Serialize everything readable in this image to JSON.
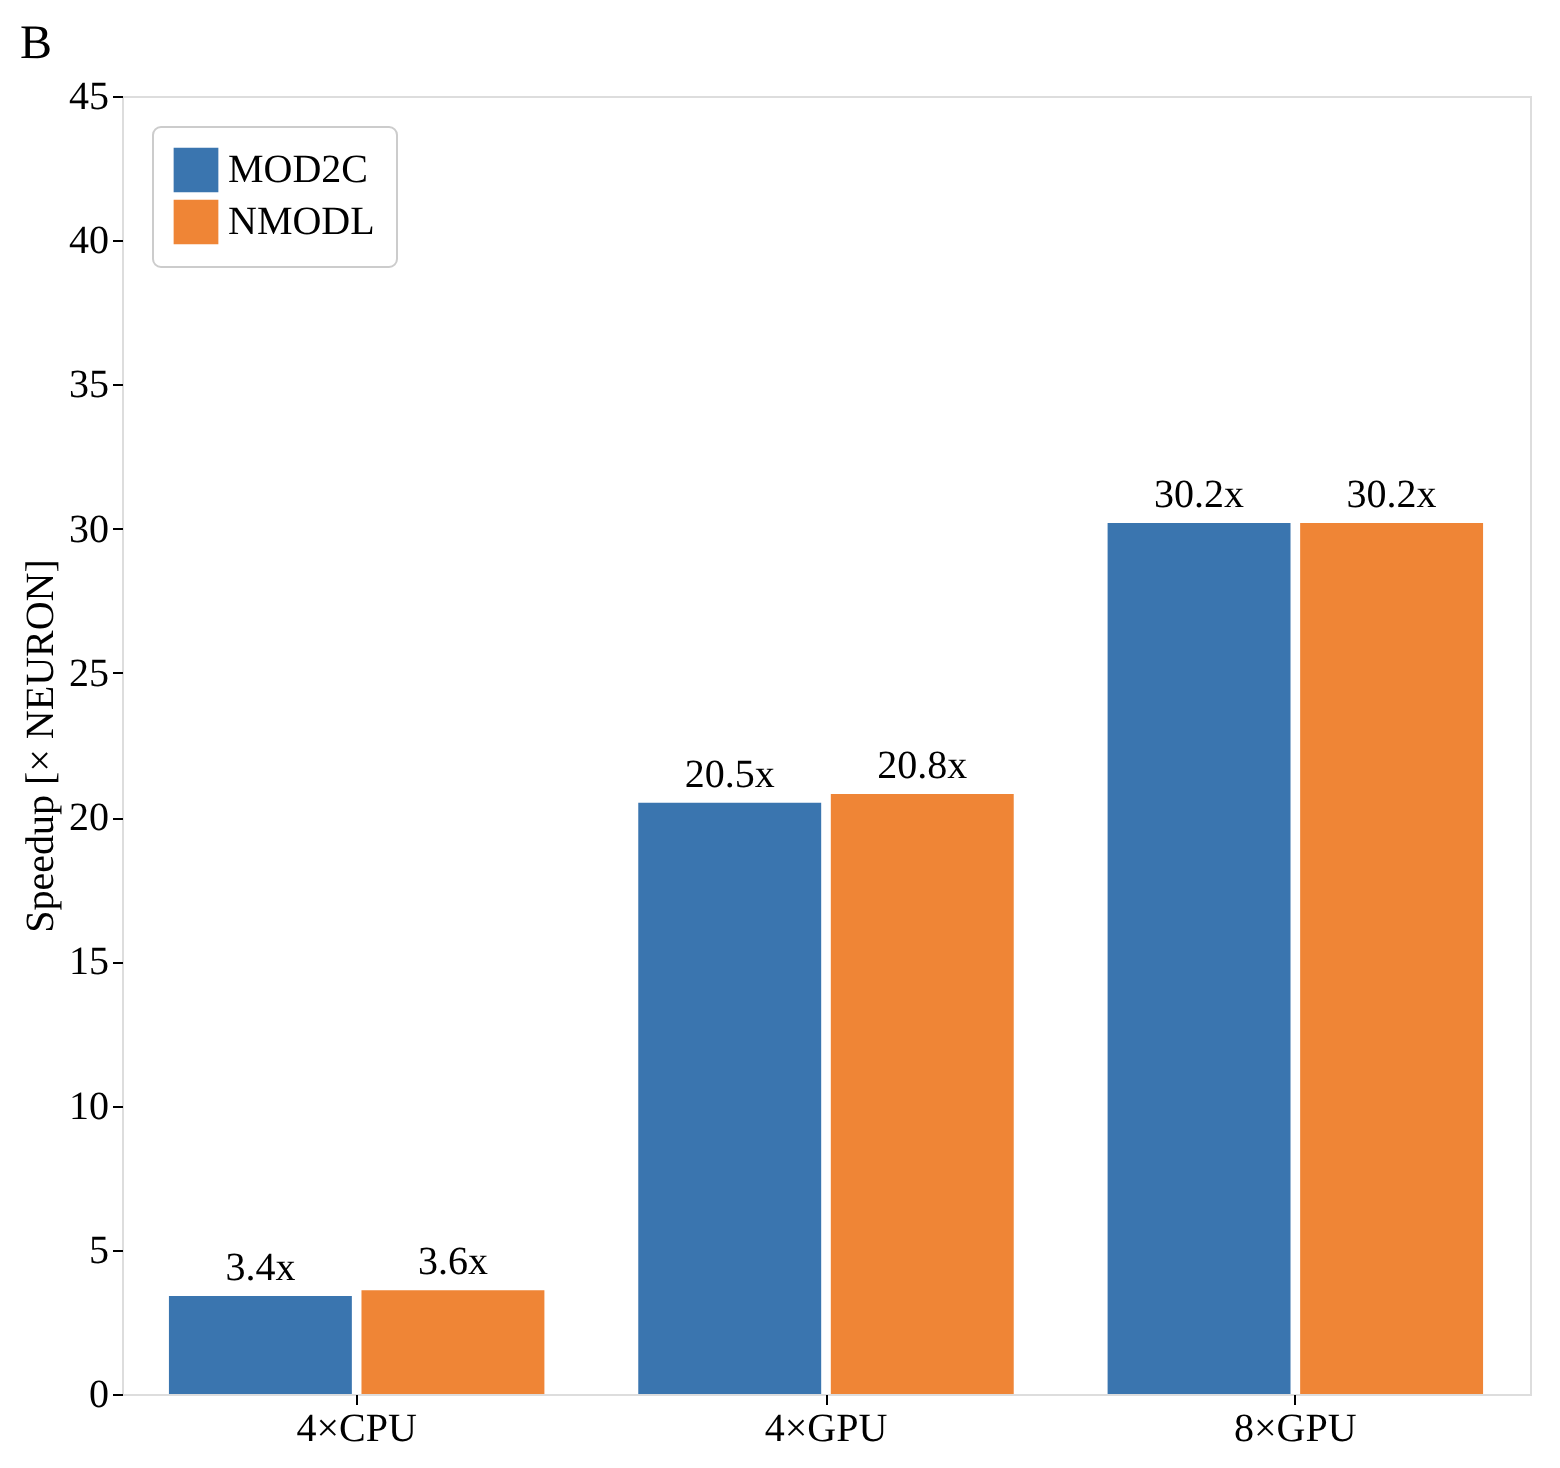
{
  "chart_data": {
    "type": "bar",
    "title": "B",
    "ylabel": "Speedup [× NEURON]",
    "categories": [
      "4×CPU",
      "4×GPU",
      "8×GPU"
    ],
    "series": [
      {
        "name": "MOD2C",
        "color": "#3a75af",
        "values": [
          3.4,
          20.5,
          30.2
        ],
        "value_labels": [
          "3.4x",
          "20.5x",
          "30.2x"
        ]
      },
      {
        "name": "NMODL",
        "color": "#ef8536",
        "values": [
          3.6,
          20.8,
          30.2
        ],
        "value_labels": [
          "3.6x",
          "20.8x",
          "30.2x"
        ]
      }
    ],
    "ylim": [
      0,
      45
    ],
    "yticks": [
      0,
      5,
      10,
      15,
      20,
      25,
      30,
      35,
      40,
      45
    ],
    "grid": false,
    "legend": "top left"
  }
}
